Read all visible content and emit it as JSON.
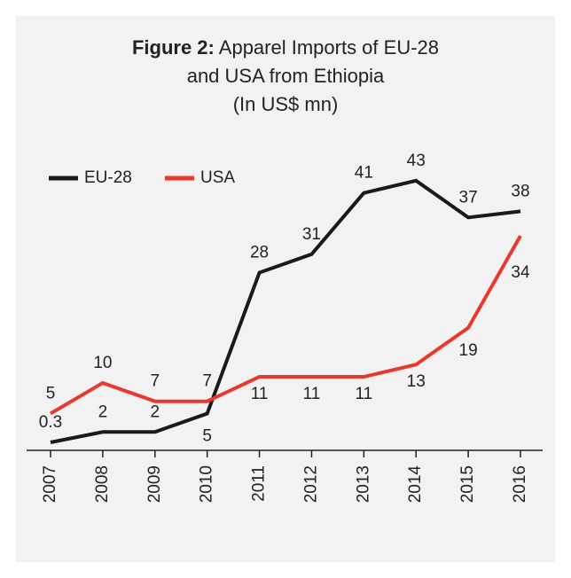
{
  "chart_data": {
    "type": "line",
    "title_label": "Figure 2:",
    "title": "Apparel Imports of EU-28 and USA from Ethiopia",
    "subtitle": "(In US$ mn)",
    "categories": [
      "2007",
      "2008",
      "2009",
      "2010",
      "2011",
      "2012",
      "2013",
      "2014",
      "2015",
      "2016"
    ],
    "series": [
      {
        "name": "EU-28",
        "color": "#1a1a1a",
        "values": [
          0.3,
          2,
          2,
          5,
          28,
          31,
          41,
          43,
          37,
          38
        ]
      },
      {
        "name": "USA",
        "color": "#e8392f",
        "values": [
          5,
          10,
          7,
          7,
          11,
          11,
          11,
          13,
          19,
          34
        ]
      }
    ],
    "ylim": [
      -1,
      45
    ]
  }
}
